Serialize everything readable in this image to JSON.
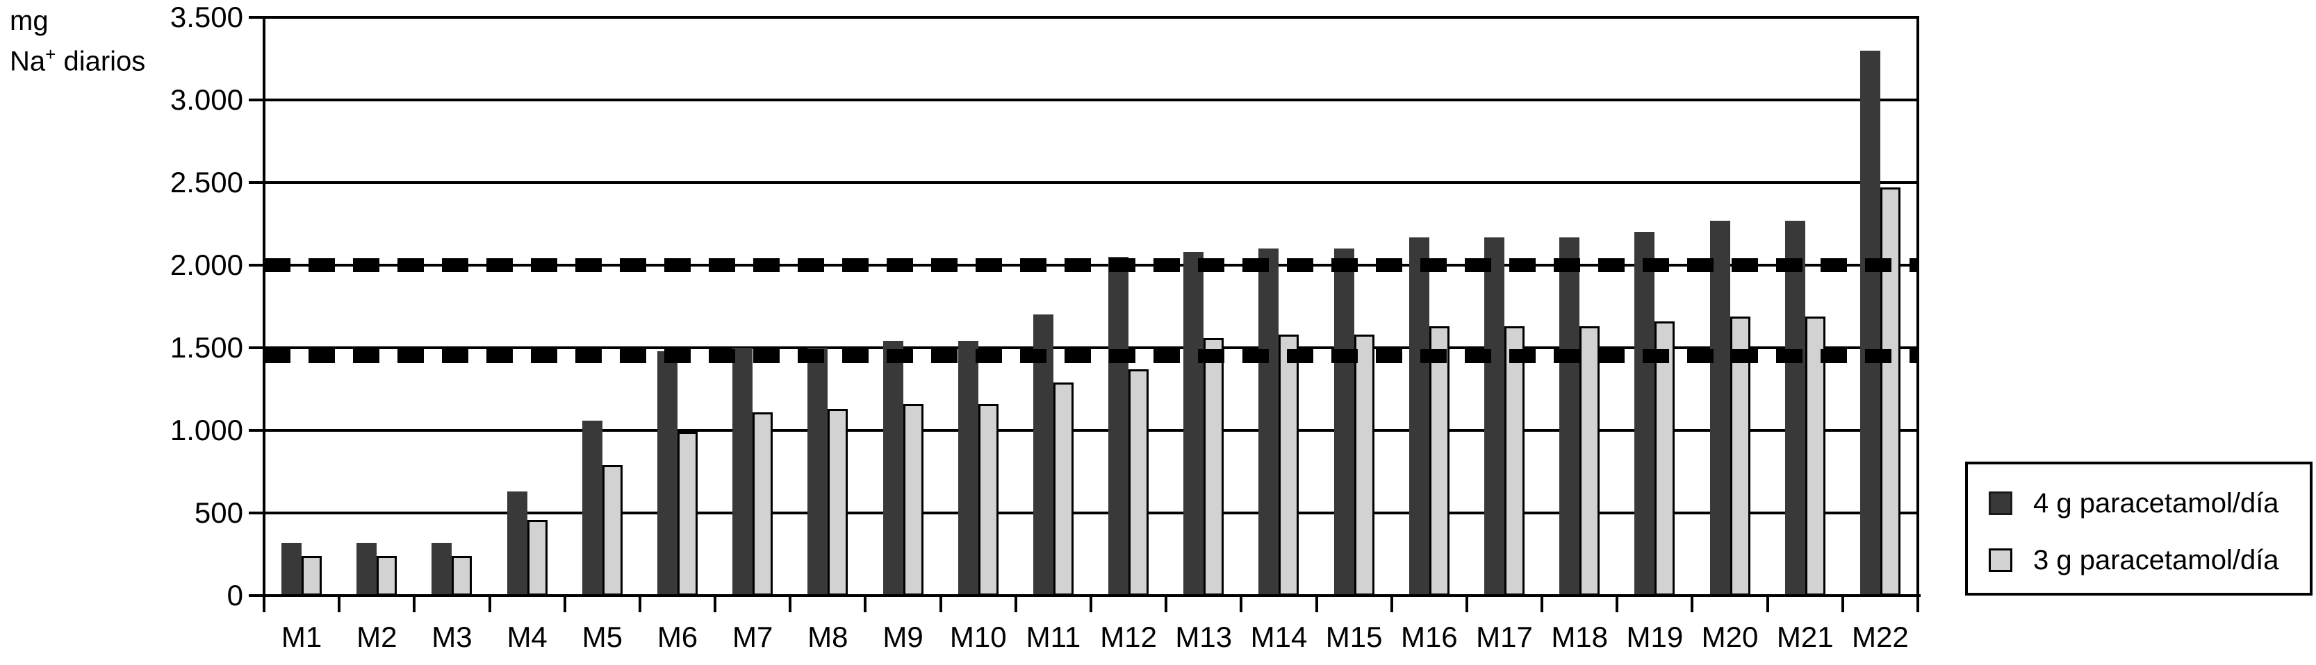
{
  "chart_data": {
    "type": "bar",
    "title": "",
    "ylabel": "mg Na+ diarios",
    "y_axis_title": {
      "line1": "mg",
      "line2_base": "Na",
      "line2_sup": "+",
      "line2_rest": " diarios"
    },
    "categories": [
      "M1",
      "M2",
      "M3",
      "M4",
      "M5",
      "M6",
      "M7",
      "M8",
      "M9",
      "M10",
      "M11",
      "M12",
      "M13",
      "M14",
      "M15",
      "M16",
      "M17",
      "M18",
      "M19",
      "M20",
      "M21",
      "M22"
    ],
    "series": [
      {
        "name": "4 g paracetamol/día",
        "color": "#393939",
        "values": [
          320,
          320,
          320,
          630,
          1060,
          1480,
          1500,
          1500,
          1540,
          1540,
          1700,
          2050,
          2080,
          2100,
          2100,
          2170,
          2170,
          2170,
          2200,
          2270,
          2270,
          3300
        ]
      },
      {
        "name": "3 g paracetamol/día",
        "color": "#d2d2d2",
        "values": [
          240,
          240,
          240,
          460,
          790,
          990,
          1110,
          1130,
          1160,
          1160,
          1290,
          1370,
          1560,
          1580,
          1580,
          1630,
          1630,
          1630,
          1660,
          1690,
          1690,
          2470
        ]
      }
    ],
    "y_ticks": [
      {
        "value": 0,
        "label": "0"
      },
      {
        "value": 500,
        "label": "500"
      },
      {
        "value": 1000,
        "label": "1.000"
      },
      {
        "value": 1500,
        "label": "1.500"
      },
      {
        "value": 2000,
        "label": "2.000"
      },
      {
        "value": 2500,
        "label": "2.500"
      },
      {
        "value": 3000,
        "label": "3.000"
      },
      {
        "value": 3500,
        "label": "3.500"
      }
    ],
    "ylim": [
      0,
      3500
    ],
    "grid": true,
    "reference_lines": [
      {
        "value": 2000,
        "style": "thick-dashed",
        "color": "#000000"
      },
      {
        "value": 1450,
        "style": "thick-dashed",
        "color": "#000000"
      }
    ],
    "legend_position": "right"
  }
}
